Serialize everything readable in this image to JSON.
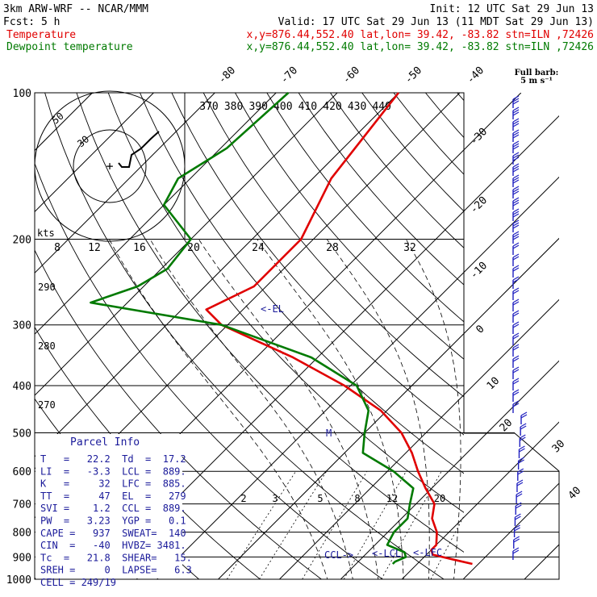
{
  "header": {
    "model": "3km ARW-WRF -- NCAR/MMM",
    "init": "Init: 12 UTC Sat 29 Jun 13",
    "fcst": "Fcst:     5 h",
    "valid": "Valid: 17 UTC Sat 29 Jun 13 (11 MDT Sat 29 Jun 13)",
    "temp_label": "Temperature",
    "temp_info": "x,y=876.44,552.40   lat,lon= 39.42, -83.82  stn=ILN ,72426",
    "dew_label": "Dewpoint temperature",
    "dew_info": "x,y=876.44,552.40   lat,lon= 39.42, -83.82  stn=ILN ,72426"
  },
  "barb_legend": {
    "line1": "Full barb:",
    "line2": "5 m s⁻¹"
  },
  "hodograph_labels": {
    "kts": "kts",
    "ring50": "50",
    "ring30": "30"
  },
  "theta_labels": [
    "370",
    "380",
    "390",
    "400",
    "410",
    "420",
    "430",
    "440"
  ],
  "isotherm_top_labels": [
    "-80",
    "-70",
    "-60",
    "-50",
    "-40"
  ],
  "isotherm_right_labels": [
    "-30",
    "-20",
    "-10",
    "0",
    "10",
    "20",
    "30",
    "40"
  ],
  "mixing_ratio_labels": [
    "8",
    "12",
    "16",
    "20",
    "24",
    "28",
    "32"
  ],
  "mixing_ratio_low_labels": [
    "2",
    "3",
    "5",
    "8",
    "12",
    "20"
  ],
  "thetae_left_labels": [
    "290",
    "280",
    "270"
  ],
  "parcel_info": {
    "title": "Parcel Info",
    "rows": [
      "T   =   22.2  Td  =  17.2",
      "LI  =   -3.3  LCL =  889.",
      "K   =     32  LFC =  885.",
      "TT  =     47  EL  =   279",
      "SVI =    1.2  CCL =  889.",
      "PW  =   3.23  YGP =   0.1",
      "CAPE =   937  SWEAT=  140",
      "CIN  =   -40  HVBZ= 3481.",
      "Tc  =   21.8  SHEAR=   15.",
      "SREH =     0  LAPSE=   6.3",
      "CELL = 249/19"
    ]
  },
  "markers": {
    "el": "<-EL",
    "m": "M",
    "ccl": "CCL->",
    "lcl": "<-LCL",
    "lfc": "<-LFC"
  },
  "colors": {
    "temperature": "#e00000",
    "dewpoint": "#007a00",
    "annot": "#1a1a9a",
    "barbs": "#2020c0"
  },
  "chart_data": {
    "type": "line",
    "title": "",
    "ylabel": "",
    "xlabel": "",
    "y_scale": "log",
    "pressure_levels": [
      100,
      200,
      300,
      400,
      500,
      600,
      700,
      800,
      900,
      1000
    ],
    "x_range_degC_at_1000": [
      -40,
      45
    ],
    "series": [
      {
        "name": "Temperature",
        "pressure": [
          100,
          150,
          200,
          250,
          279,
          300,
          350,
          400,
          450,
          500,
          550,
          600,
          650,
          700,
          750,
          800,
          850,
          870,
          890,
          910,
          930
        ],
        "values": [
          -60,
          -57,
          -52,
          -52,
          -56,
          -51,
          -34,
          -21,
          -11,
          -4,
          1,
          5,
          9,
          13,
          15,
          18,
          20,
          20,
          21,
          25,
          29
        ]
      },
      {
        "name": "Dewpoint temperature",
        "pressure": [
          100,
          130,
          150,
          170,
          200,
          230,
          250,
          270,
          300,
          350,
          400,
          450,
          500,
          550,
          600,
          650,
          700,
          750,
          800,
          850,
          880,
          900,
          920,
          930
        ],
        "values": [
          -78,
          -79,
          -82,
          -80,
          -70,
          -69,
          -71,
          -76,
          -51,
          -31,
          -19,
          -13,
          -10,
          -7,
          1,
          7,
          9,
          11,
          11,
          12,
          16,
          17,
          16,
          16
        ]
      }
    ]
  }
}
